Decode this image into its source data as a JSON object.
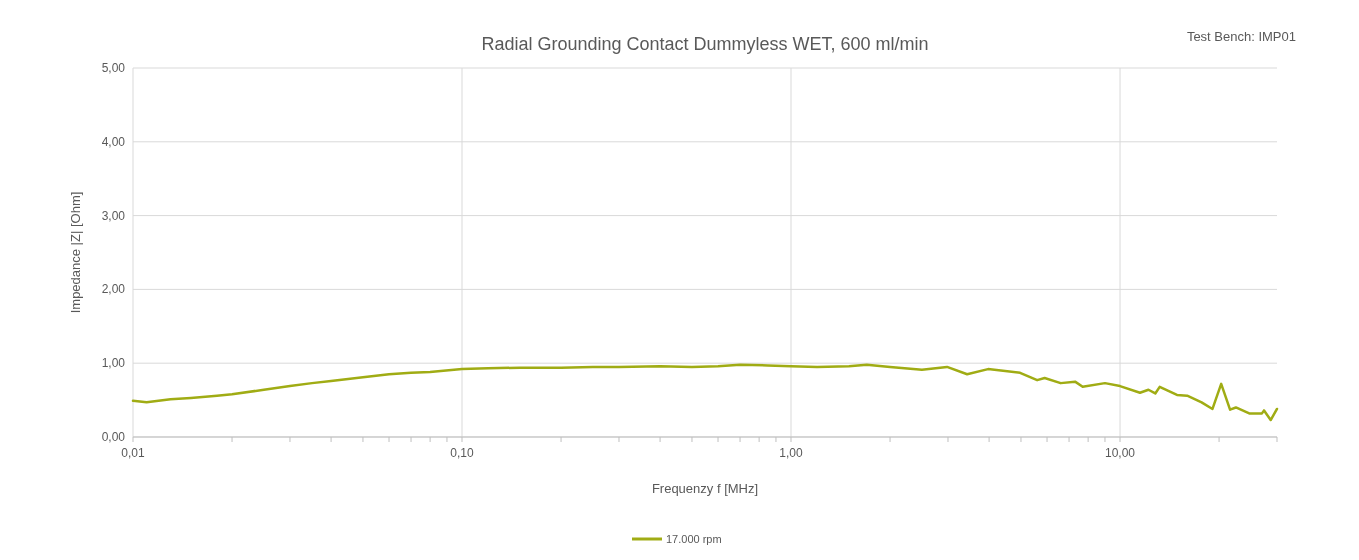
{
  "chart_data": {
    "type": "line",
    "title": "Radial Grounding Contact Dummyless WET, 600 ml/min",
    "annotations": [
      "Test Bench: IMP01"
    ],
    "xlabel": "Frequenzy f [MHz]",
    "ylabel": "Impedance |Z| [Ohm]",
    "log": "x",
    "xlim": [
      0.01,
      30
    ],
    "ylim": [
      0,
      5
    ],
    "xticks": [
      {
        "value": 0.01,
        "label": "0,01"
      },
      {
        "value": 0.02,
        "label": null
      },
      {
        "value": 0.03,
        "label": null
      },
      {
        "value": 0.04,
        "label": null
      },
      {
        "value": 0.05,
        "label": null
      },
      {
        "value": 0.06,
        "label": null
      },
      {
        "value": 0.07,
        "label": null
      },
      {
        "value": 0.08,
        "label": null
      },
      {
        "value": 0.09,
        "label": null
      },
      {
        "value": 0.1,
        "label": "0,10"
      },
      {
        "value": 0.2,
        "label": null
      },
      {
        "value": 0.3,
        "label": null
      },
      {
        "value": 0.4,
        "label": null
      },
      {
        "value": 0.5,
        "label": null
      },
      {
        "value": 0.6,
        "label": null
      },
      {
        "value": 0.7,
        "label": null
      },
      {
        "value": 0.8,
        "label": null
      },
      {
        "value": 0.9,
        "label": null
      },
      {
        "value": 1,
        "label": "1,00"
      },
      {
        "value": 2,
        "label": null
      },
      {
        "value": 3,
        "label": null
      },
      {
        "value": 4,
        "label": null
      },
      {
        "value": 5,
        "label": null
      },
      {
        "value": 6,
        "label": null
      },
      {
        "value": 7,
        "label": null
      },
      {
        "value": 8,
        "label": null
      },
      {
        "value": 9,
        "label": null
      },
      {
        "value": 10,
        "label": "10,00"
      },
      {
        "value": 20,
        "label": null
      },
      {
        "value": 30,
        "label": null
      }
    ],
    "yticks": [
      {
        "value": 0,
        "label": "0,00"
      },
      {
        "value": 1,
        "label": "1,00"
      },
      {
        "value": 2,
        "label": "2,00"
      },
      {
        "value": 3,
        "label": "3,00"
      },
      {
        "value": 4,
        "label": "4,00"
      },
      {
        "value": 5,
        "label": "5,00"
      }
    ],
    "grid": true,
    "legend": "bottom",
    "marker": "none",
    "line_style": "solid",
    "series": [
      {
        "name": "17.000 rpm",
        "color": "#a0ac14",
        "x": [
          0.01,
          0.011,
          0.013,
          0.015,
          0.018,
          0.02,
          0.025,
          0.03,
          0.035,
          0.04,
          0.05,
          0.06,
          0.07,
          0.08,
          0.1,
          0.12,
          0.15,
          0.2,
          0.25,
          0.3,
          0.4,
          0.5,
          0.6,
          0.7,
          0.85,
          1,
          1.2,
          1.5,
          1.7,
          2,
          2.5,
          2.98,
          3.43,
          3.97,
          4.97,
          5.6,
          5.9,
          6.6,
          7.3,
          7.7,
          9,
          10,
          11.5,
          12.2,
          12.8,
          13.2,
          14.9,
          16,
          17.7,
          19.1,
          20.3,
          21.6,
          22.5,
          24.7,
          27,
          27.4,
          28.7,
          30
        ],
        "values": [
          0.49,
          0.47,
          0.51,
          0.53,
          0.56,
          0.58,
          0.64,
          0.69,
          0.73,
          0.76,
          0.81,
          0.85,
          0.87,
          0.88,
          0.92,
          0.93,
          0.94,
          0.94,
          0.95,
          0.95,
          0.96,
          0.95,
          0.96,
          0.98,
          0.97,
          0.96,
          0.95,
          0.96,
          0.98,
          0.95,
          0.91,
          0.95,
          0.85,
          0.92,
          0.87,
          0.77,
          0.8,
          0.73,
          0.75,
          0.68,
          0.73,
          0.69,
          0.6,
          0.64,
          0.59,
          0.68,
          0.57,
          0.56,
          0.47,
          0.38,
          0.72,
          0.37,
          0.4,
          0.32,
          0.32,
          0.36,
          0.23,
          0.38
        ]
      }
    ]
  }
}
